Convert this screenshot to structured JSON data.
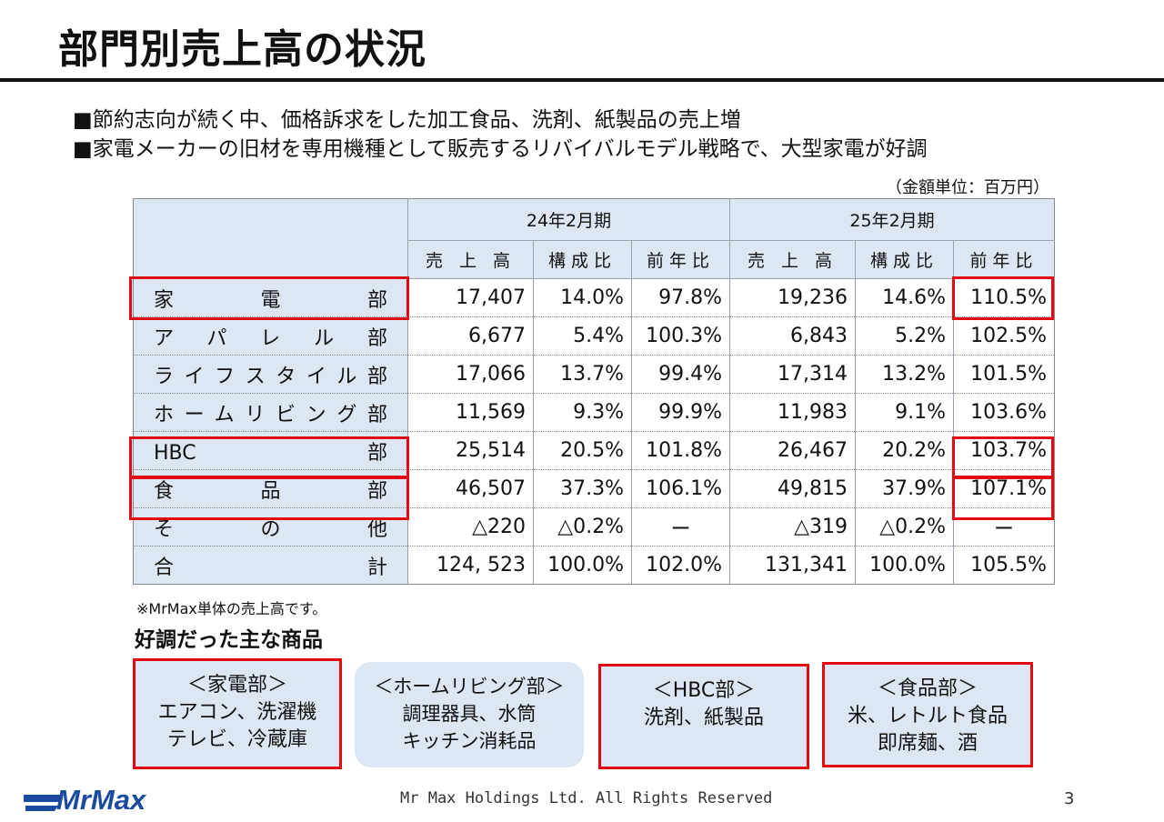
{
  "slide": {
    "title": "部門別売上高の状況",
    "bullets": [
      "■節約志向が続く中、価格訴求をした加工食品、洗剤、紙製品の売上増",
      "■家電メーカーの旧材を専用機種として販売するリバイバルモデル戦略で、大型家電が好調"
    ],
    "unit_note": "（金額単位：百万円）",
    "footnote": "※MrMax単体の売上高です。",
    "products_heading": "好調だった主な商品",
    "copyright": "Mr Max Holdings Ltd. All Rights Reserved",
    "page_number": "3",
    "logo_text": "MrMax",
    "highlight_color": "#e30613",
    "header_fill": "#dce7f3"
  },
  "table": {
    "period_headers": [
      "24年2月期",
      "25年2月期"
    ],
    "sub_headers": [
      "売 上 高",
      "構成比",
      "前年比",
      "売 上 高",
      "構成比",
      "前年比"
    ],
    "rows": [
      {
        "dept": "家電部",
        "v": [
          "17,407",
          "14.0%",
          "97.8%",
          "19,236",
          "14.6%",
          "110.5%"
        ]
      },
      {
        "dept": "アパレル部",
        "v": [
          "6,677",
          "5.4%",
          "100.3%",
          "6,843",
          "5.2%",
          "102.5%"
        ]
      },
      {
        "dept": "ライフスタイル部",
        "v": [
          "17,066",
          "13.7%",
          "99.4%",
          "17,314",
          "13.2%",
          "101.5%"
        ]
      },
      {
        "dept": "ホームリビング部",
        "v": [
          "11,569",
          "9.3%",
          "99.9%",
          "11,983",
          "9.1%",
          "103.6%"
        ]
      },
      {
        "dept": "HBC部",
        "v": [
          "25,514",
          "20.5%",
          "101.8%",
          "26,467",
          "20.2%",
          "103.7%"
        ]
      },
      {
        "dept": "食品部",
        "v": [
          "46,507",
          "37.3%",
          "106.1%",
          "49,815",
          "37.9%",
          "107.1%"
        ]
      },
      {
        "dept": "その他",
        "v": [
          "△220",
          "△0.2%",
          "ー",
          "△319",
          "△0.2%",
          "ー"
        ]
      },
      {
        "dept": "合計",
        "v": [
          "124, 523",
          "100.0%",
          "102.0%",
          "131,341",
          "100.0%",
          "105.5%"
        ]
      }
    ]
  },
  "products": [
    {
      "heading": "＜家電部＞",
      "lines": [
        "エアコン、洗濯機",
        "テレビ、冷蔵庫"
      ],
      "highlighted": true
    },
    {
      "heading": "＜ホームリビング部＞",
      "lines": [
        "調理器具、水筒",
        "キッチン消耗品"
      ],
      "highlighted": false
    },
    {
      "heading": "＜HBC部＞",
      "lines": [
        "洗剤、紙製品"
      ],
      "highlighted": true
    },
    {
      "heading": "＜食品部＞",
      "lines": [
        "米、レトルト食品",
        "即席麺、酒"
      ],
      "highlighted": true
    }
  ]
}
